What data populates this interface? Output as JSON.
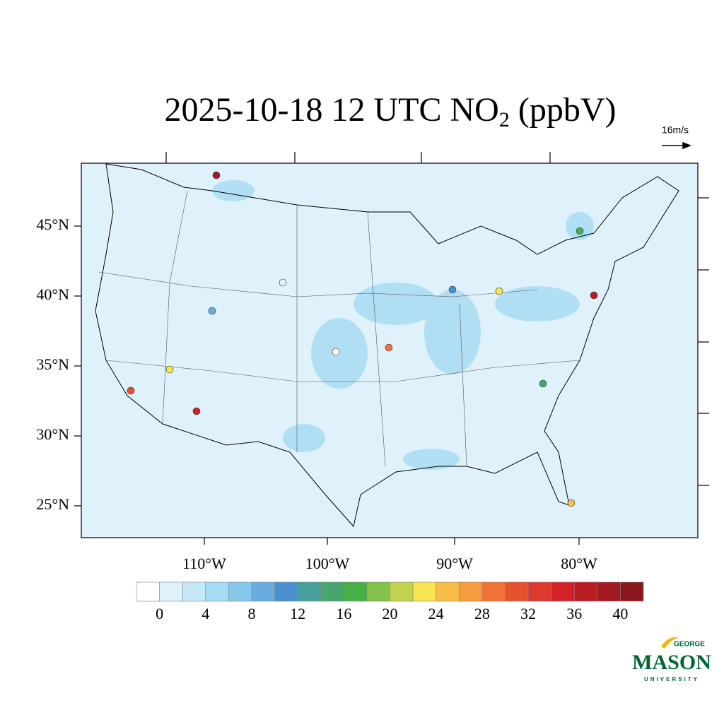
{
  "map": {
    "title": {
      "main": "2025-10-18 12 UTC NO",
      "subscript": "2",
      "suffix": " (ppbV)"
    },
    "vector_reference": "16m/s",
    "lat_labels": [
      "45°N",
      "40°N",
      "35°N",
      "30°N",
      "25°N"
    ],
    "lon_labels": [
      "110°W",
      "100°W",
      "90°W",
      "80°W"
    ],
    "colorbar": {
      "colors": [
        "#ffffff",
        "#dff2fb",
        "#c4e8f8",
        "#a5dbf3",
        "#86c8ec",
        "#69ace0",
        "#4a8fd0",
        "#479f9c",
        "#45a56d",
        "#46b046",
        "#84c149",
        "#c0d24e",
        "#f7e552",
        "#f7bd47",
        "#f59c3f",
        "#f17236",
        "#e5522f",
        "#dc3a2c",
        "#d42127",
        "#b81d24",
        "#a21a21",
        "#8a171b"
      ],
      "ticks": [
        0,
        4,
        8,
        12,
        16,
        20,
        24,
        28,
        32,
        36,
        40
      ]
    },
    "logo": {
      "top": "GEORGE",
      "main": "MASON",
      "bottom": "UNIVERSITY"
    }
  }
}
